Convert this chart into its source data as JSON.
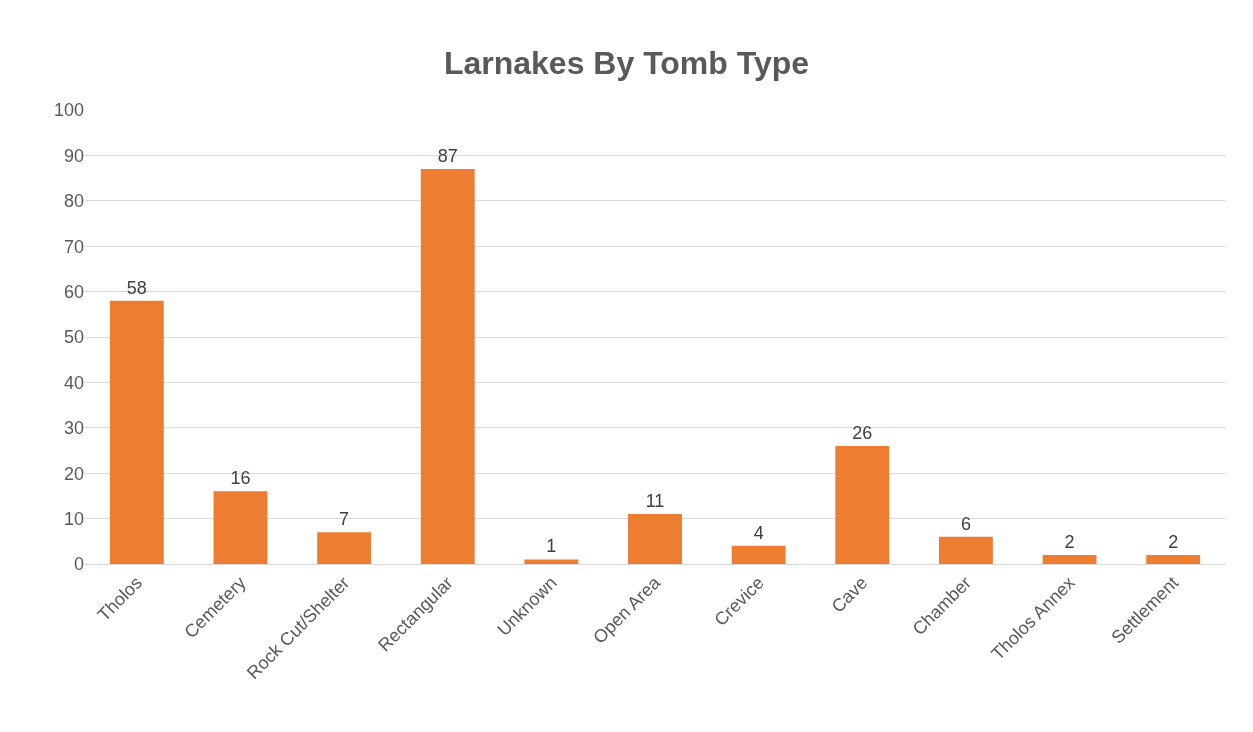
{
  "chart_data": {
    "type": "bar",
    "title": "Larnakes By Tomb Type",
    "categories": [
      "Tholos",
      "Cemetery",
      "Rock Cut/Shelter",
      "Rectangular",
      "Unknown",
      "Open Area",
      "Crevice",
      "Cave",
      "Chamber",
      "Tholos Annex",
      "Settlement"
    ],
    "values": [
      58,
      16,
      7,
      87,
      1,
      11,
      4,
      26,
      6,
      2,
      2
    ],
    "color": "#ed7d31",
    "ylim": [
      0,
      100
    ],
    "yticks": [
      0,
      10,
      20,
      30,
      40,
      50,
      60,
      70,
      80,
      90,
      100
    ],
    "grid": "y",
    "data_labels": true
  }
}
